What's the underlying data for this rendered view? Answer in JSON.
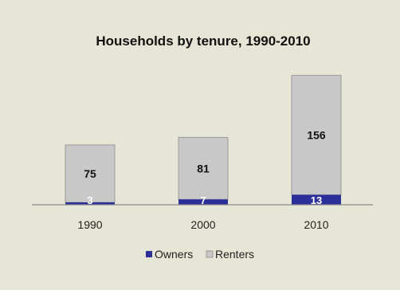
{
  "chart_data": {
    "type": "bar",
    "stacked": true,
    "title": "Households by tenure, 1990-2010",
    "categories": [
      "1990",
      "2000",
      "2010"
    ],
    "series": [
      {
        "name": "Owners",
        "values": [
          3,
          7,
          13
        ],
        "color": "#2b2f9a"
      },
      {
        "name": "Renters",
        "values": [
          75,
          81,
          156
        ],
        "color": "#c8c8c8"
      }
    ],
    "ylim": [
      0,
      180
    ],
    "grid": false,
    "legend": "bottom",
    "background": "#e6e6d6"
  }
}
